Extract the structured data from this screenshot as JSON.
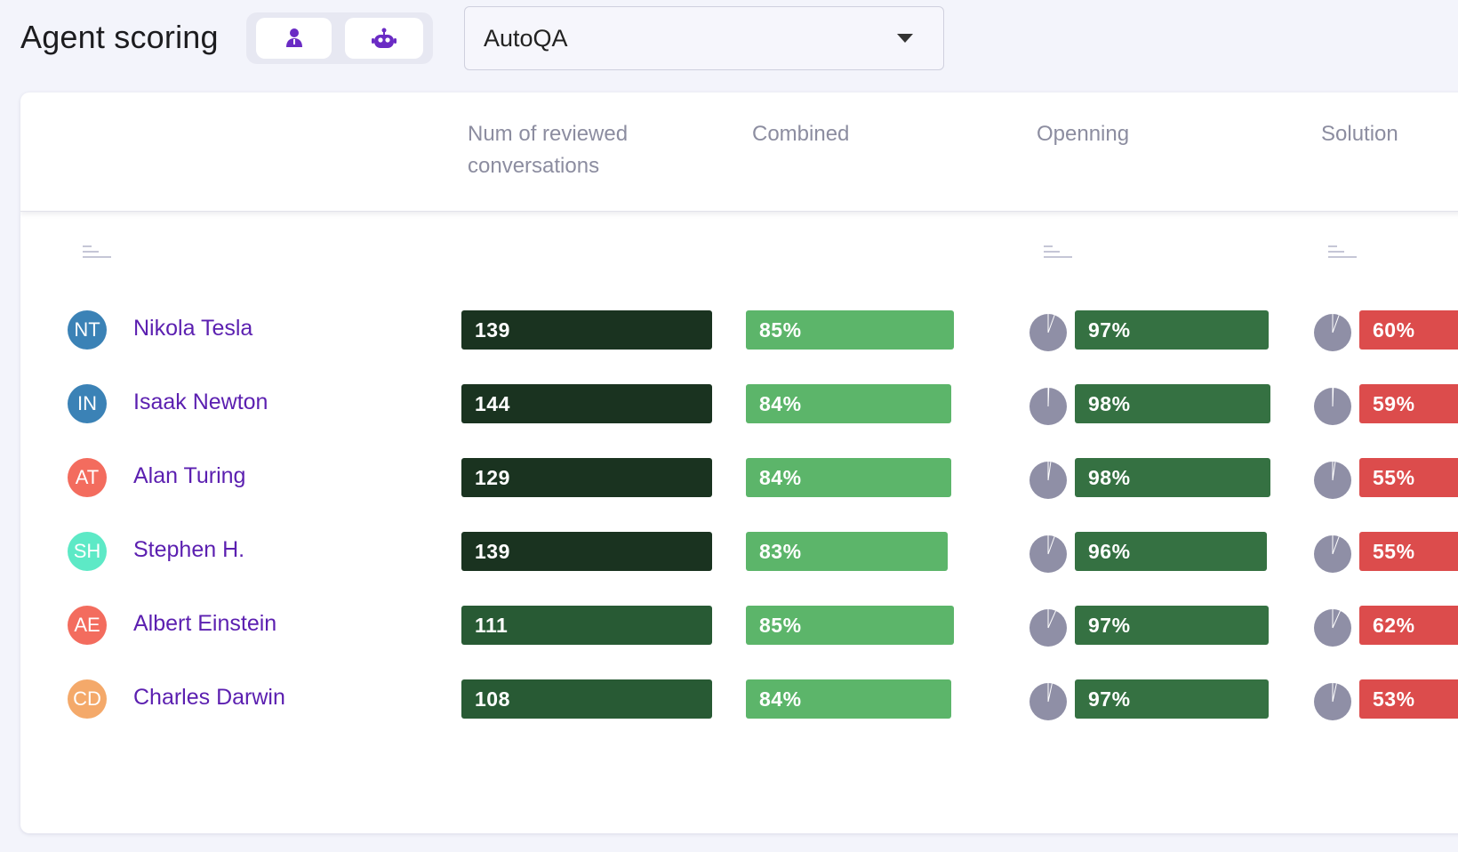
{
  "page": {
    "title": "Agent scoring"
  },
  "toggle": {
    "options": [
      {
        "icon": "person-icon",
        "selected": false
      },
      {
        "icon": "robot-icon",
        "selected": true
      }
    ],
    "accent_color": "#6a2bc4"
  },
  "source_select": {
    "value": "AutoQA"
  },
  "table": {
    "columns": {
      "reviewed": "Num of reviewed conversations",
      "combined": "Combined",
      "openning": "Openning",
      "solution": "Solution"
    },
    "rows": [
      {
        "initials": "NT",
        "avatar_color": "#3b82b6",
        "name": "Nikola Tesla",
        "reviewed": "139",
        "combined": "85%",
        "openning": "97%",
        "solution": "60%"
      },
      {
        "initials": "IN",
        "avatar_color": "#3b82b6",
        "name": "Isaak Newton",
        "reviewed": "144",
        "combined": "84%",
        "openning": "98%",
        "solution": "59%"
      },
      {
        "initials": "AT",
        "avatar_color": "#f36c5e",
        "name": "Alan Turing",
        "reviewed": "129",
        "combined": "84%",
        "openning": "98%",
        "solution": "55%"
      },
      {
        "initials": "SH",
        "avatar_color": "#5de9c6",
        "name": "Stephen H.",
        "reviewed": "139",
        "combined": "83%",
        "openning": "96%",
        "solution": "55%"
      },
      {
        "initials": "AE",
        "avatar_color": "#f36c5e",
        "name": "Albert Einstein",
        "reviewed": "111",
        "combined": "85%",
        "openning": "97%",
        "solution": "62%"
      },
      {
        "initials": "CD",
        "avatar_color": "#f4a96a",
        "name": "Charles Darwin",
        "reviewed": "108",
        "combined": "84%",
        "openning": "97%",
        "solution": "53%"
      }
    ],
    "colors": {
      "reviewed_dark": "#1a3320",
      "reviewed_mid": "#285a34",
      "combined": "#5cb56a",
      "openning": "#357142",
      "solution": "#dc4c4c",
      "pie": "#8f8fa6"
    }
  }
}
